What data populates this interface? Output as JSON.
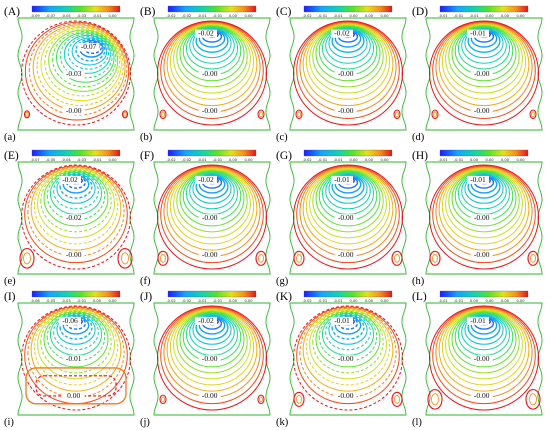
{
  "chart_data": [
    {
      "id": "A",
      "label": "(a)",
      "type": "contour",
      "colorbar_ticks": [
        "-0.09",
        "-0.07",
        "-0.05",
        "-0.03",
        "-0.01",
        "0.00"
      ],
      "contour_labels": [
        "-0.07",
        "-0.03",
        "-0.00"
      ],
      "vortex_min": -0.09,
      "eddy": "slight",
      "dashed": true
    },
    {
      "id": "B",
      "label": "(b)",
      "type": "contour",
      "colorbar_ticks": [
        "-0.02",
        "-0.02",
        "-0.01",
        "-0.01",
        "0.00",
        "0.00"
      ],
      "contour_labels": [
        "-0.02",
        "-0.00",
        "-0.00"
      ],
      "vortex_min": -0.02,
      "eddy": "small",
      "dashed": false
    },
    {
      "id": "C",
      "label": "(c)",
      "type": "contour",
      "colorbar_ticks": [
        "-0.02",
        "-0.01",
        "-0.01",
        "0.00",
        "0.00",
        "0.00"
      ],
      "contour_labels": [
        "-0.02",
        "-0.00",
        "-0.00"
      ],
      "vortex_min": -0.02,
      "eddy": "small",
      "dashed": false
    },
    {
      "id": "D",
      "label": "(d)",
      "type": "contour",
      "colorbar_ticks": [
        "-0.01",
        "-0.01",
        "-0.01",
        "0.00",
        "0.00",
        "0.00"
      ],
      "contour_labels": [
        "-0.01",
        "-0.00",
        "-0.00"
      ],
      "vortex_min": -0.01,
      "eddy": "small",
      "dashed": false
    },
    {
      "id": "E",
      "label": "(e)",
      "type": "contour",
      "colorbar_ticks": [
        "-0.07",
        "-0.05",
        "-0.04",
        "-0.03",
        "-0.01",
        "0.00"
      ],
      "contour_labels": [
        "-0.02",
        "-0.02",
        "-0.00"
      ],
      "vortex_min": -0.07,
      "eddy": "large",
      "dashed": true
    },
    {
      "id": "F",
      "label": "(f)",
      "type": "contour",
      "colorbar_ticks": [
        "-0.02",
        "-0.02",
        "-0.01",
        "-0.01",
        "0.00",
        "0.00"
      ],
      "contour_labels": [
        "-0.02",
        "-0.00",
        "-0.00"
      ],
      "vortex_min": -0.02,
      "eddy": "medium",
      "dashed": false
    },
    {
      "id": "G",
      "label": "(g)",
      "type": "contour",
      "colorbar_ticks": [
        "-0.02",
        "-0.01",
        "-0.01",
        "0.00",
        "0.00",
        "0.00"
      ],
      "contour_labels": [
        "-0.01",
        "-0.00",
        "-0.00"
      ],
      "vortex_min": -0.02,
      "eddy": "medium",
      "dashed": false
    },
    {
      "id": "H",
      "label": "(h)",
      "type": "contour",
      "colorbar_ticks": [
        "-0.01",
        "-0.01",
        "0.00",
        "0.00",
        "0.00",
        "0.00"
      ],
      "contour_labels": [
        "-0.01",
        "-0.00",
        "-0.00"
      ],
      "vortex_min": -0.01,
      "eddy": "medium",
      "dashed": false
    },
    {
      "id": "I",
      "label": "(i)",
      "type": "contour",
      "colorbar_ticks": [
        "-0.06",
        "-0.05",
        "-0.03",
        "-0.01",
        "0.00",
        "0.00"
      ],
      "contour_labels": [
        "-0.06",
        "-0.01",
        "0.00"
      ],
      "vortex_min": -0.06,
      "eddy": "box",
      "dashed": true
    },
    {
      "id": "J",
      "label": "(j)",
      "type": "contour",
      "colorbar_ticks": [
        "-0.02",
        "-0.02",
        "-0.01",
        "-0.01",
        "0.00",
        "0.00"
      ],
      "contour_labels": [
        "-0.02",
        "-0.00",
        "-0.00"
      ],
      "vortex_min": -0.02,
      "eddy": "small",
      "dashed": false
    },
    {
      "id": "K",
      "label": "(k)",
      "type": "contour",
      "colorbar_ticks": [
        "-0.02",
        "-0.01",
        "-0.01",
        "0.00",
        "0.00",
        "0.00"
      ],
      "contour_labels": [
        "-0.01",
        "-0.00",
        "-0.00"
      ],
      "vortex_min": -0.02,
      "eddy": "medium",
      "dashed": true
    },
    {
      "id": "L",
      "label": "(l)",
      "type": "contour",
      "colorbar_ticks": [
        "-0.01",
        "-0.01",
        "0.00",
        "0.00",
        "0.00",
        "0.00"
      ],
      "contour_labels": [
        "-0.01",
        "-0.00",
        "-0.00"
      ],
      "vortex_min": -0.01,
      "eddy": "large",
      "dashed": false
    }
  ]
}
